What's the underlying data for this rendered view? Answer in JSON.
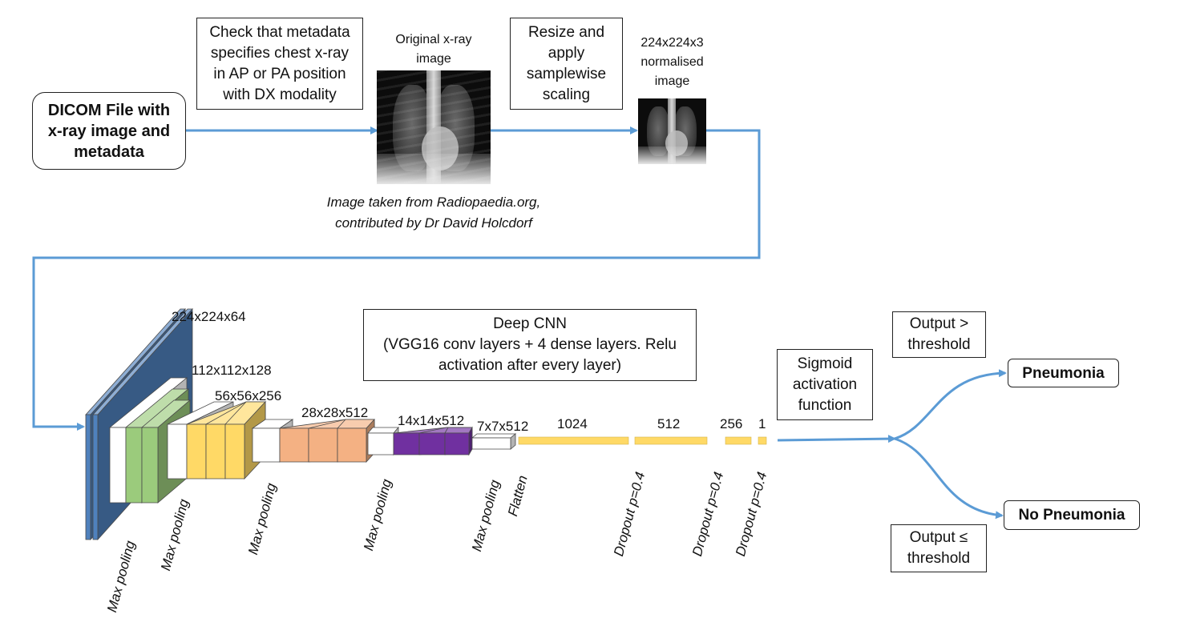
{
  "boxes": {
    "dicom": "DICOM File with\nx-ray image and\nmetadata",
    "check_metadata": "Check that metadata\nspecifies chest x-ray\nin AP or PA position\nwith DX modality",
    "resize": "Resize and\napply\nsamplewise\nscaling",
    "cnn": "Deep CNN\n(VGG16 conv layers + 4 dense layers. Relu\nactivation after every layer)",
    "sigmoid": "Sigmoid\nactivation\nfunction",
    "output_gt": "Output >\nthreshold",
    "output_le": "Output ≤\nthreshold",
    "pneumonia": "Pneumonia",
    "no_pneumonia": "No Pneumonia"
  },
  "labels": {
    "original_image": "Original x-ray\nimage",
    "normalised_image": "224x224x3\nnormalised\nimage",
    "credit": "Image taken from Radiopaedia.org,\ncontributed by Dr David Holcdorf"
  },
  "layer_dims": [
    "224x224x64",
    "112x112x128",
    "56x56x256",
    "28x28x512",
    "14x14x512",
    "7x7x512",
    "1024",
    "512",
    "256",
    "1"
  ],
  "operations": {
    "max_pooling": "Max pooling",
    "flatten": "Flatten",
    "dropout": "Dropout p=0.4"
  },
  "colors": {
    "arrow": "#5b9bd5",
    "block1": "#4f81bd",
    "block2": "#9bcb7c",
    "block3": "#ffd966",
    "block4": "#f4b183",
    "block5": "#7030a0",
    "dense": "#ffd966"
  }
}
